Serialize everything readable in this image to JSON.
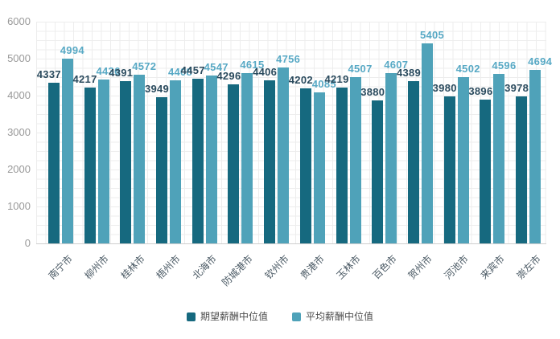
{
  "chart_data": {
    "type": "bar",
    "categories": [
      "南宁市",
      "柳州市",
      "桂林市",
      "梧州市",
      "北海市",
      "防城港市",
      "钦州市",
      "贵港市",
      "玉林市",
      "百色市",
      "贺州市",
      "河池市",
      "来宾市",
      "崇左市"
    ],
    "series": [
      {
        "name": "期望薪酬中位值",
        "color": "#16697f",
        "label_color": "#2b4b5e",
        "values": [
          4337,
          4217,
          4391,
          3949,
          4457,
          4296,
          4406,
          4202,
          4219,
          3880,
          4389,
          3980,
          3896,
          3978
        ]
      },
      {
        "name": "平均薪酬中位值",
        "color": "#4fa2b9",
        "label_color": "#58a9c5",
        "values": [
          4994,
          4436,
          4572,
          4408,
          4547,
          4615,
          4756,
          4085,
          4507,
          4607,
          5405,
          4502,
          4596,
          4694
        ]
      }
    ],
    "ylim": [
      0,
      6000
    ],
    "y_ticks": [
      0,
      1000,
      2000,
      3000,
      4000,
      5000,
      6000
    ],
    "grid": true,
    "legend_position": "bottom",
    "colors": {
      "grid_line": "#ededed",
      "axis_line": "#cfcfcf",
      "y_tick_label": "#999999",
      "x_tick_label": "#4a5964",
      "legend_text": "#4d4d4d",
      "background": "#ffffff"
    }
  }
}
